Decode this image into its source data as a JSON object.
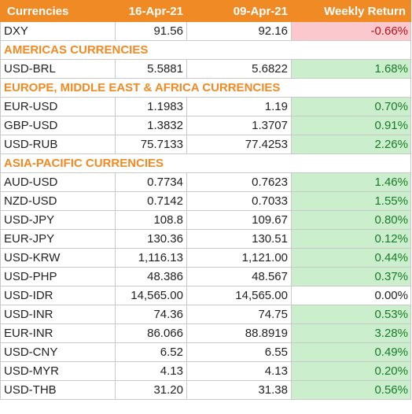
{
  "header": {
    "col1": "Currencies",
    "col2": "16-Apr-21",
    "col3": "09-Apr-21",
    "col4": "Weekly Return"
  },
  "rows": [
    {
      "type": "row",
      "name": "DXY",
      "v1": "91.56",
      "v2": "92.16",
      "ret": "-0.66%",
      "sign": "neg"
    },
    {
      "type": "section",
      "name": "AMERICAS CURRENCIES"
    },
    {
      "type": "row",
      "name": "USD-BRL",
      "v1": "5.5881",
      "v2": "5.6822",
      "ret": "1.68%",
      "sign": "pos"
    },
    {
      "type": "section",
      "name": "EUROPE, MIDDLE EAST & AFRICA CURRENCIES"
    },
    {
      "type": "row",
      "name": "EUR-USD",
      "v1": "1.1983",
      "v2": "1.19",
      "ret": "0.70%",
      "sign": "pos"
    },
    {
      "type": "row",
      "name": "GBP-USD",
      "v1": "1.3832",
      "v2": "1.3707",
      "ret": "0.91%",
      "sign": "pos"
    },
    {
      "type": "row",
      "name": "USD-RUB",
      "v1": "75.7133",
      "v2": "77.4253",
      "ret": "2.26%",
      "sign": "pos"
    },
    {
      "type": "section",
      "name": "ASIA-PACIFIC CURRENCIES"
    },
    {
      "type": "row",
      "name": "AUD-USD",
      "v1": "0.7734",
      "v2": "0.7623",
      "ret": "1.46%",
      "sign": "pos"
    },
    {
      "type": "row",
      "name": "NZD-USD",
      "v1": "0.7142",
      "v2": "0.7033",
      "ret": "1.55%",
      "sign": "pos"
    },
    {
      "type": "row",
      "name": "USD-JPY",
      "v1": "108.8",
      "v2": "109.67",
      "ret": "0.80%",
      "sign": "pos"
    },
    {
      "type": "row",
      "name": "EUR-JPY",
      "v1": "130.36",
      "v2": "130.51",
      "ret": "0.12%",
      "sign": "pos"
    },
    {
      "type": "row",
      "name": "USD-KRW",
      "v1": "1,116.13",
      "v2": "1,121.00",
      "ret": "0.44%",
      "sign": "pos"
    },
    {
      "type": "row",
      "name": "USD-PHP",
      "v1": "48.386",
      "v2": "48.567",
      "ret": "0.37%",
      "sign": "pos"
    },
    {
      "type": "row",
      "name": "USD-IDR",
      "v1": "14,565.00",
      "v2": "14,565.00",
      "ret": "0.00%",
      "sign": "zero"
    },
    {
      "type": "row",
      "name": "USD-INR",
      "v1": "74.36",
      "v2": "74.75",
      "ret": "0.53%",
      "sign": "pos"
    },
    {
      "type": "row",
      "name": "EUR-INR",
      "v1": "86.066",
      "v2": "88.8919",
      "ret": "3.28%",
      "sign": "pos"
    },
    {
      "type": "row",
      "name": "USD-CNY",
      "v1": "6.52",
      "v2": "6.55",
      "ret": "0.49%",
      "sign": "pos"
    },
    {
      "type": "row",
      "name": "USD-MYR",
      "v1": "4.13",
      "v2": "4.13",
      "ret": "0.20%",
      "sign": "pos"
    },
    {
      "type": "row",
      "name": "USD-THB",
      "v1": "31.20",
      "v2": "31.38",
      "ret": "0.56%",
      "sign": "pos"
    }
  ]
}
